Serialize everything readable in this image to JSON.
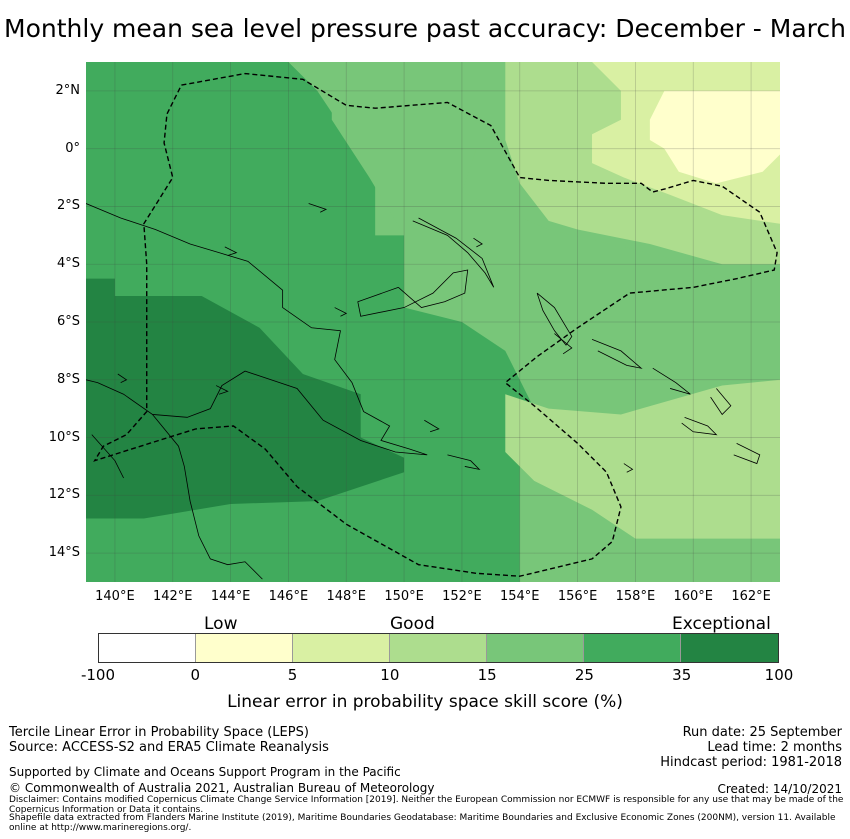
{
  "title": "Monthly mean sea level pressure past accuracy: December - March",
  "map": {
    "lat_labels": [
      "2°N",
      "0°",
      "2°S",
      "4°S",
      "6°S",
      "8°S",
      "10°S",
      "12°S",
      "14°S"
    ],
    "lon_labels": [
      "140°E",
      "142°E",
      "144°E",
      "146°E",
      "148°E",
      "150°E",
      "152°E",
      "154°E",
      "156°E",
      "158°E",
      "160°E",
      "162°E"
    ],
    "lon_range": [
      139,
      163
    ],
    "lat_range": [
      -15,
      3
    ],
    "colors": {
      "c_0_5": "#ffffcc",
      "c_5_10": "#d9f0a3",
      "c_10_15": "#addd8e",
      "c_15_25": "#78c679",
      "c_25_35": "#41ab5d",
      "c_35_100": "#238443"
    },
    "eez_outline_lonlat": [
      [
        142.3,
        2.2
      ],
      [
        144.5,
        2.6
      ],
      [
        146.5,
        2.4
      ],
      [
        148,
        1.5
      ],
      [
        149,
        1.4
      ],
      [
        151.5,
        1.6
      ],
      [
        153,
        0.8
      ],
      [
        154,
        -1
      ],
      [
        155,
        -1.1
      ],
      [
        157,
        -1.2
      ],
      [
        158.2,
        -1.2
      ],
      [
        158.6,
        -1.5
      ],
      [
        159,
        -1.4
      ],
      [
        160,
        -1.1
      ],
      [
        161,
        -1.3
      ],
      [
        162.3,
        -2.2
      ],
      [
        162.9,
        -3.6
      ],
      [
        162.8,
        -4.2
      ],
      [
        161.5,
        -4.5
      ],
      [
        160,
        -4.8
      ],
      [
        157.8,
        -5
      ],
      [
        156,
        -6.2
      ],
      [
        154.6,
        -7.2
      ],
      [
        153.5,
        -8.1
      ],
      [
        154.5,
        -8.9
      ],
      [
        156,
        -10.2
      ],
      [
        157,
        -11.2
      ],
      [
        157.5,
        -12.4
      ],
      [
        157.2,
        -13.6
      ],
      [
        156.5,
        -14.2
      ],
      [
        154,
        -14.8
      ],
      [
        152.5,
        -14.7
      ],
      [
        150.5,
        -14.4
      ],
      [
        148,
        -13
      ],
      [
        146.3,
        -11.7
      ],
      [
        145.2,
        -10.4
      ],
      [
        144.1,
        -9.6
      ],
      [
        142.8,
        -9.7
      ],
      [
        141.2,
        -10.2
      ],
      [
        139.3,
        -10.8
      ],
      [
        139.6,
        -10.3
      ],
      [
        140.4,
        -9.9
      ],
      [
        141.1,
        -9.1
      ],
      [
        141.1,
        -4
      ],
      [
        141,
        -2.6
      ],
      [
        142,
        -1
      ],
      [
        141.7,
        0.2
      ],
      [
        141.8,
        1.2
      ],
      [
        142.3,
        2.2
      ]
    ]
  },
  "colorbar": {
    "headers": [
      "Low",
      "Good",
      "Exceptional"
    ],
    "segments": [
      {
        "from": -100,
        "to": 0,
        "color": "#ffffff"
      },
      {
        "from": 0,
        "to": 5,
        "color": "#ffffcc"
      },
      {
        "from": 5,
        "to": 10,
        "color": "#d9f0a3"
      },
      {
        "from": 10,
        "to": 15,
        "color": "#addd8e"
      },
      {
        "from": 15,
        "to": 25,
        "color": "#78c679"
      },
      {
        "from": 25,
        "to": 35,
        "color": "#41ab5d"
      },
      {
        "from": 35,
        "to": 100,
        "color": "#238443"
      }
    ],
    "ticks": [
      "-100",
      "0",
      "5",
      "10",
      "15",
      "25",
      "35",
      "100"
    ],
    "axis_label": "Linear error in probability space skill score (%)"
  },
  "footer": {
    "left_line1": "Tercile Linear Error in Probability Space (LEPS)",
    "left_line2": "Source: ACCESS-S2 and ERA5 Climate Reanalysis",
    "left_line3": "Supported by Climate and Oceans Support Program in the Pacific",
    "left_line4": "© Commonwealth of Australia 2021, Australian Bureau of Meteorology",
    "right_line1": "Run date: 25 September",
    "right_line2": "Lead time: 2 months",
    "right_line3": "Hindcast period: 1981-2018",
    "created": "Created: 14/10/2021",
    "disclaimer": "Disclaimer: Contains modified Copernicus Climate Change Service Information [2019]. Neither the European Commission nor ECMWF is responsible for any use that may be made of the Copernicus Information or Data it contains.",
    "shapefile": "Shapefile data extracted from Flanders Marine Institute (2019), Maritime Boundaries Geodatabase: Maritime Boundaries and Exclusive Economic Zones (200NM), version 11. Available online at http://www.marineregions.org/."
  }
}
